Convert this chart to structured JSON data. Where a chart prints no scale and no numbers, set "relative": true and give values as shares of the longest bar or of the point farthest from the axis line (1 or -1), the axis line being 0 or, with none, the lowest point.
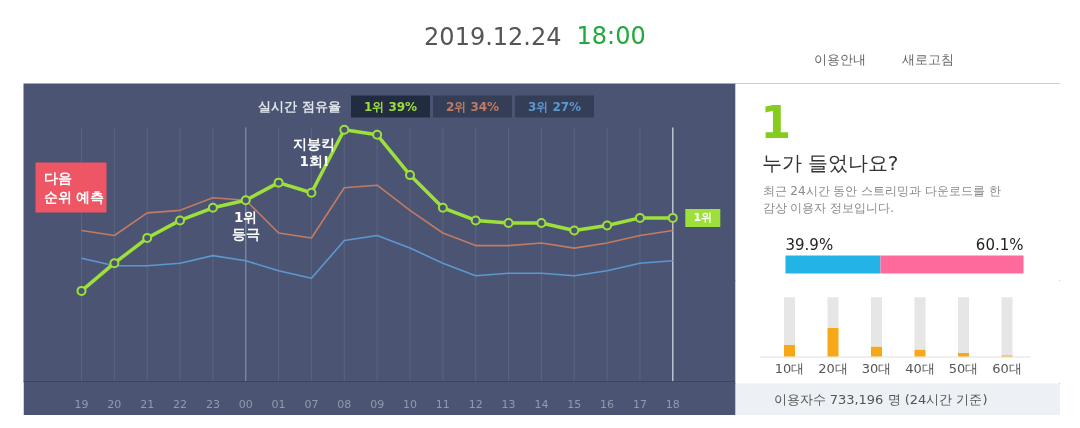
{
  "chart_data": [
    {
      "type": "other",
      "title": "2019.12.24 18:00",
      "annotations": [
        "이용안내",
        "새로고침"
      ]
    },
    {
      "type": "line",
      "relative": true,
      "legend": "top",
      "legend_title": "실시간 점유율",
      "grid": "x",
      "categories": [
        "19",
        "20",
        "21",
        "22",
        "23",
        "00",
        "01",
        "07",
        "08",
        "09",
        "10",
        "11",
        "12",
        "13",
        "14",
        "15",
        "16",
        "17",
        "18"
      ],
      "series": [
        {
          "name": "1위 39%",
          "color": "#9ee03a",
          "marker": "circle",
          "values": [
            0.36,
            0.47,
            0.57,
            0.64,
            0.69,
            0.72,
            0.79,
            0.75,
            1,
            0.98,
            0.82,
            0.69,
            0.64,
            0.63,
            0.63,
            0.6,
            0.62,
            0.65,
            0.65
          ]
        },
        {
          "name": "2위 34%",
          "color": "#c27a63",
          "values": [
            0.6,
            0.58,
            0.67,
            0.68,
            0.73,
            0.72,
            0.59,
            0.57,
            0.77,
            0.78,
            0.68,
            0.59,
            0.54,
            0.54,
            0.55,
            0.53,
            0.55,
            0.58,
            0.6
          ]
        },
        {
          "name": "3위 27%",
          "color": "#5c98d0",
          "values": [
            0.49,
            0.46,
            0.46,
            0.47,
            0.5,
            0.48,
            0.44,
            0.41,
            0.56,
            0.58,
            0.53,
            0.47,
            0.42,
            0.43,
            0.43,
            0.42,
            0.44,
            0.47,
            0.48
          ]
        }
      ],
      "ref_lines": [
        {
          "axis": "x",
          "value": "00",
          "color": "#7f8ba6"
        },
        {
          "axis": "x",
          "value": "18",
          "color": "#d5d9e2"
        }
      ],
      "annotations": [
        "다음 순위 예측",
        {
          "text": "1위 등극",
          "x": "00",
          "y": 0.72
        },
        {
          "text": "지붕킥 1회!",
          "x": "08",
          "y": 1
        },
        {
          "text": "1위",
          "x": "18",
          "y": 0.65
        }
      ]
    },
    {
      "type": "bar",
      "orientation": "horizontal",
      "stacked": true,
      "title": "누가 들었나요?",
      "subtitle": "최근 24시간 동안 스트리밍과 다운로드를 한 감상 이용자 정보입니다.",
      "annotations": [
        "1"
      ],
      "categories": [
        null
      ],
      "xlim": [
        0,
        100
      ],
      "series": [
        {
          "color": "#22b4e4",
          "values": [
            39.9
          ],
          "value_labels": [
            "39.9%"
          ]
        },
        {
          "color": "#ff6a9c",
          "values": [
            60.1
          ],
          "value_labels": [
            "60.1%"
          ]
        }
      ]
    },
    {
      "type": "bar",
      "relative": true,
      "stacked": true,
      "categories": [
        "10대",
        "20대",
        "30대",
        "40대",
        "50대",
        "60대"
      ],
      "series": [
        {
          "color": "#f7a818",
          "values": [
            0.2,
            0.48,
            0.17,
            0.12,
            0.06,
            0.02
          ]
        },
        {
          "color": "#e6e6e6",
          "values": [
            0.8,
            0.52,
            0.83,
            0.88,
            0.94,
            0.98
          ]
        }
      ],
      "annotations": [
        "이용자수 733,196 명 (24시간 기준)"
      ]
    }
  ]
}
